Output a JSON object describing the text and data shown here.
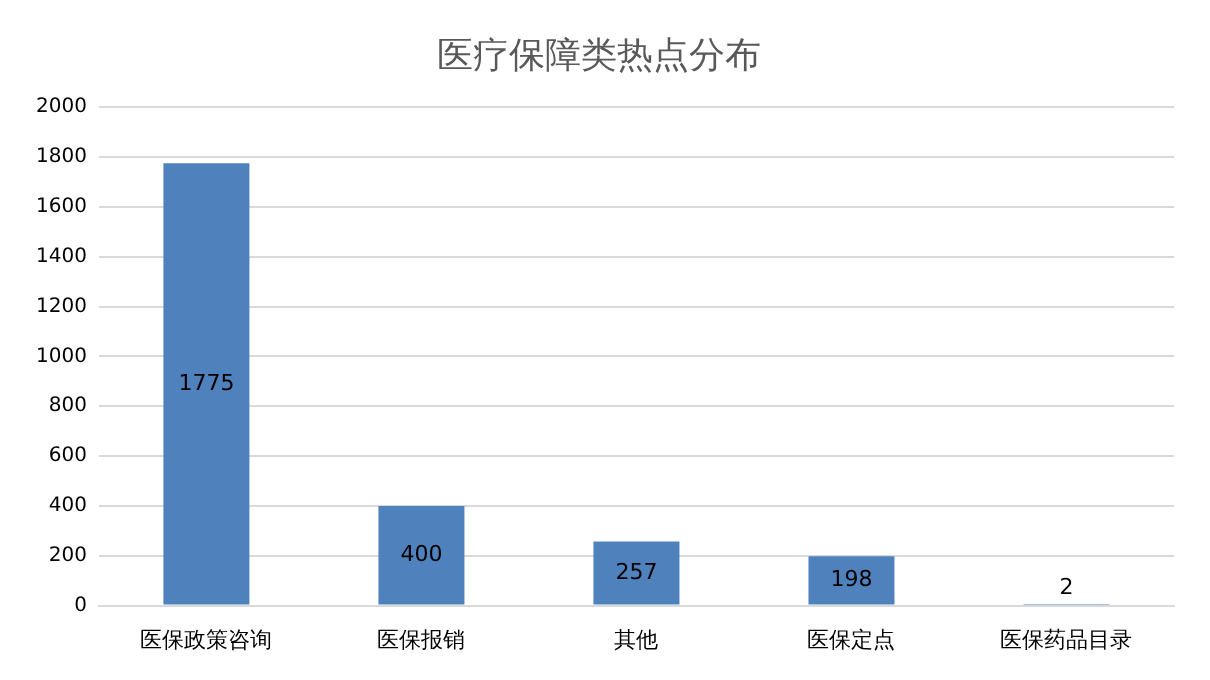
{
  "chart_data": {
    "type": "bar",
    "title": "医疗保障类热点分布",
    "categories": [
      "医保政策咨询",
      "医保报销",
      "其他",
      "医保定点",
      "医保药品目录"
    ],
    "values": [
      1775,
      400,
      257,
      198,
      2
    ],
    "color": "#4f81bd",
    "ylim": [
      0,
      2000
    ],
    "yticks": [
      0,
      200,
      400,
      600,
      800,
      1000,
      1200,
      1400,
      1600,
      1800,
      2000
    ],
    "grid": "y",
    "legend": false,
    "data_labels": true
  }
}
